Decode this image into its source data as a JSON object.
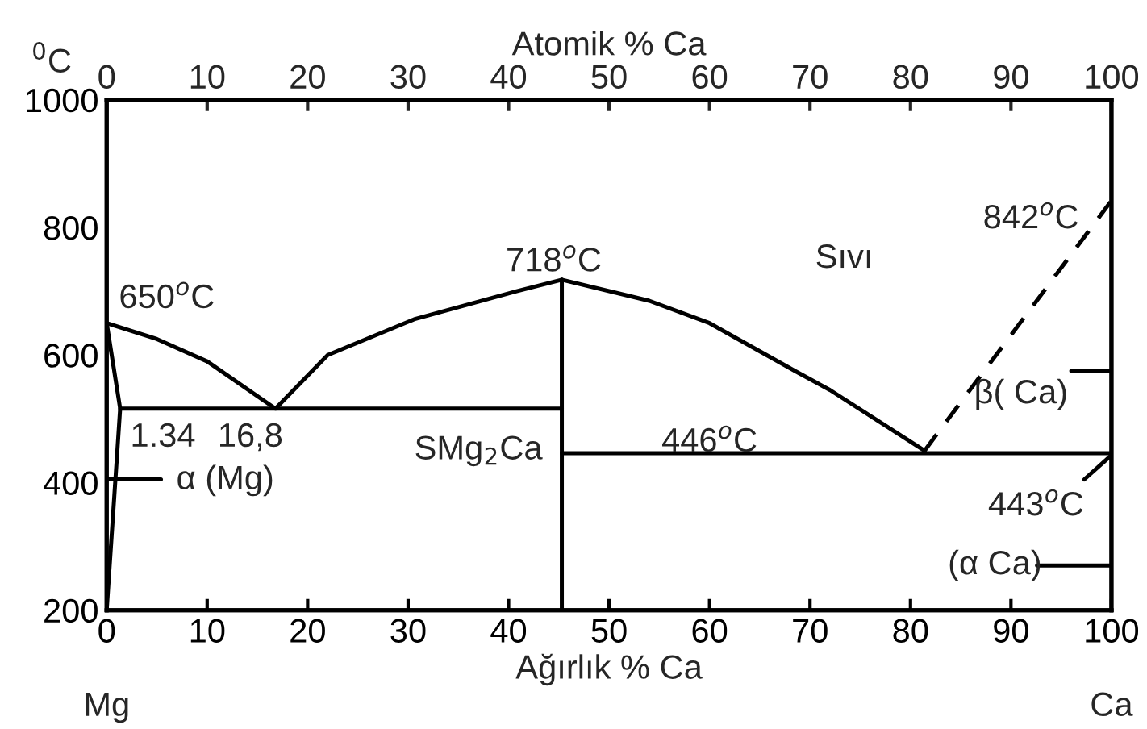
{
  "chart_data": {
    "type": "line",
    "xlabel": "Ağırlık % Ca",
    "x2label": "Atomik % Ca",
    "ylabel": "$^{0}$C",
    "xlim": [
      0,
      100
    ],
    "xticks": [
      0,
      10,
      20,
      30,
      40,
      50,
      60,
      70,
      80,
      90,
      100
    ],
    "x2lim": [
      0,
      100
    ],
    "x2ticks": [
      0,
      10,
      20,
      30,
      40,
      50,
      60,
      70,
      80,
      90,
      100
    ],
    "ylim": [
      200,
      1000
    ],
    "yticks": [
      200,
      400,
      600,
      800,
      1000
    ],
    "series": [
      {
        "color": "#000000",
        "x": [
          0,
          5,
          10,
          16.8,
          22,
          30.6,
          40.8,
          45.3
        ],
        "values": [
          650,
          625,
          590,
          516,
          600,
          656,
          700,
          718
        ]
      },
      {
        "color": "#000000",
        "x": [
          45.3,
          54,
          60,
          68.5,
          72,
          81.4
        ],
        "values": [
          718,
          685,
          650,
          575,
          545,
          450
        ]
      },
      {
        "color": "#000000",
        "line_style": "dashed",
        "x": [
          81.4,
          100
        ],
        "values": [
          450,
          842
        ]
      },
      {
        "color": "#000000",
        "x": [
          1.34,
          45.3
        ],
        "values": [
          516,
          516
        ]
      },
      {
        "color": "#000000",
        "x": [
          45.3,
          100
        ],
        "values": [
          446,
          446
        ]
      },
      {
        "color": "#000000",
        "x": [
          45.3,
          45.3
        ],
        "values": [
          200,
          718
        ]
      },
      {
        "color": "#000000",
        "x": [
          0,
          1.34,
          0
        ],
        "values": [
          650,
          516,
          200
        ]
      },
      {
        "color": "#000000",
        "x": [
          0.2,
          5.4
        ],
        "values": [
          405,
          405
        ]
      },
      {
        "color": "#000000",
        "x": [
          96,
          100
        ],
        "values": [
          575,
          575
        ]
      },
      {
        "color": "#000000",
        "x": [
          92.6,
          100
        ],
        "values": [
          270,
          270
        ]
      },
      {
        "color": "#000000",
        "x": [
          97.3,
          100
        ],
        "values": [
          405,
          443
        ]
      }
    ],
    "annotations": [
      "650$^{o}$C",
      "718$^{o}$C",
      "Sıvı",
      "842$^{o}$C",
      "β( Ca)",
      "1.34",
      "16,8",
      "SMg$_{2}$Ca",
      "α (Mg)",
      "446$^{o}$C",
      "443$^{o}$C",
      "(α Ca)",
      "Mg",
      "Ca"
    ]
  }
}
